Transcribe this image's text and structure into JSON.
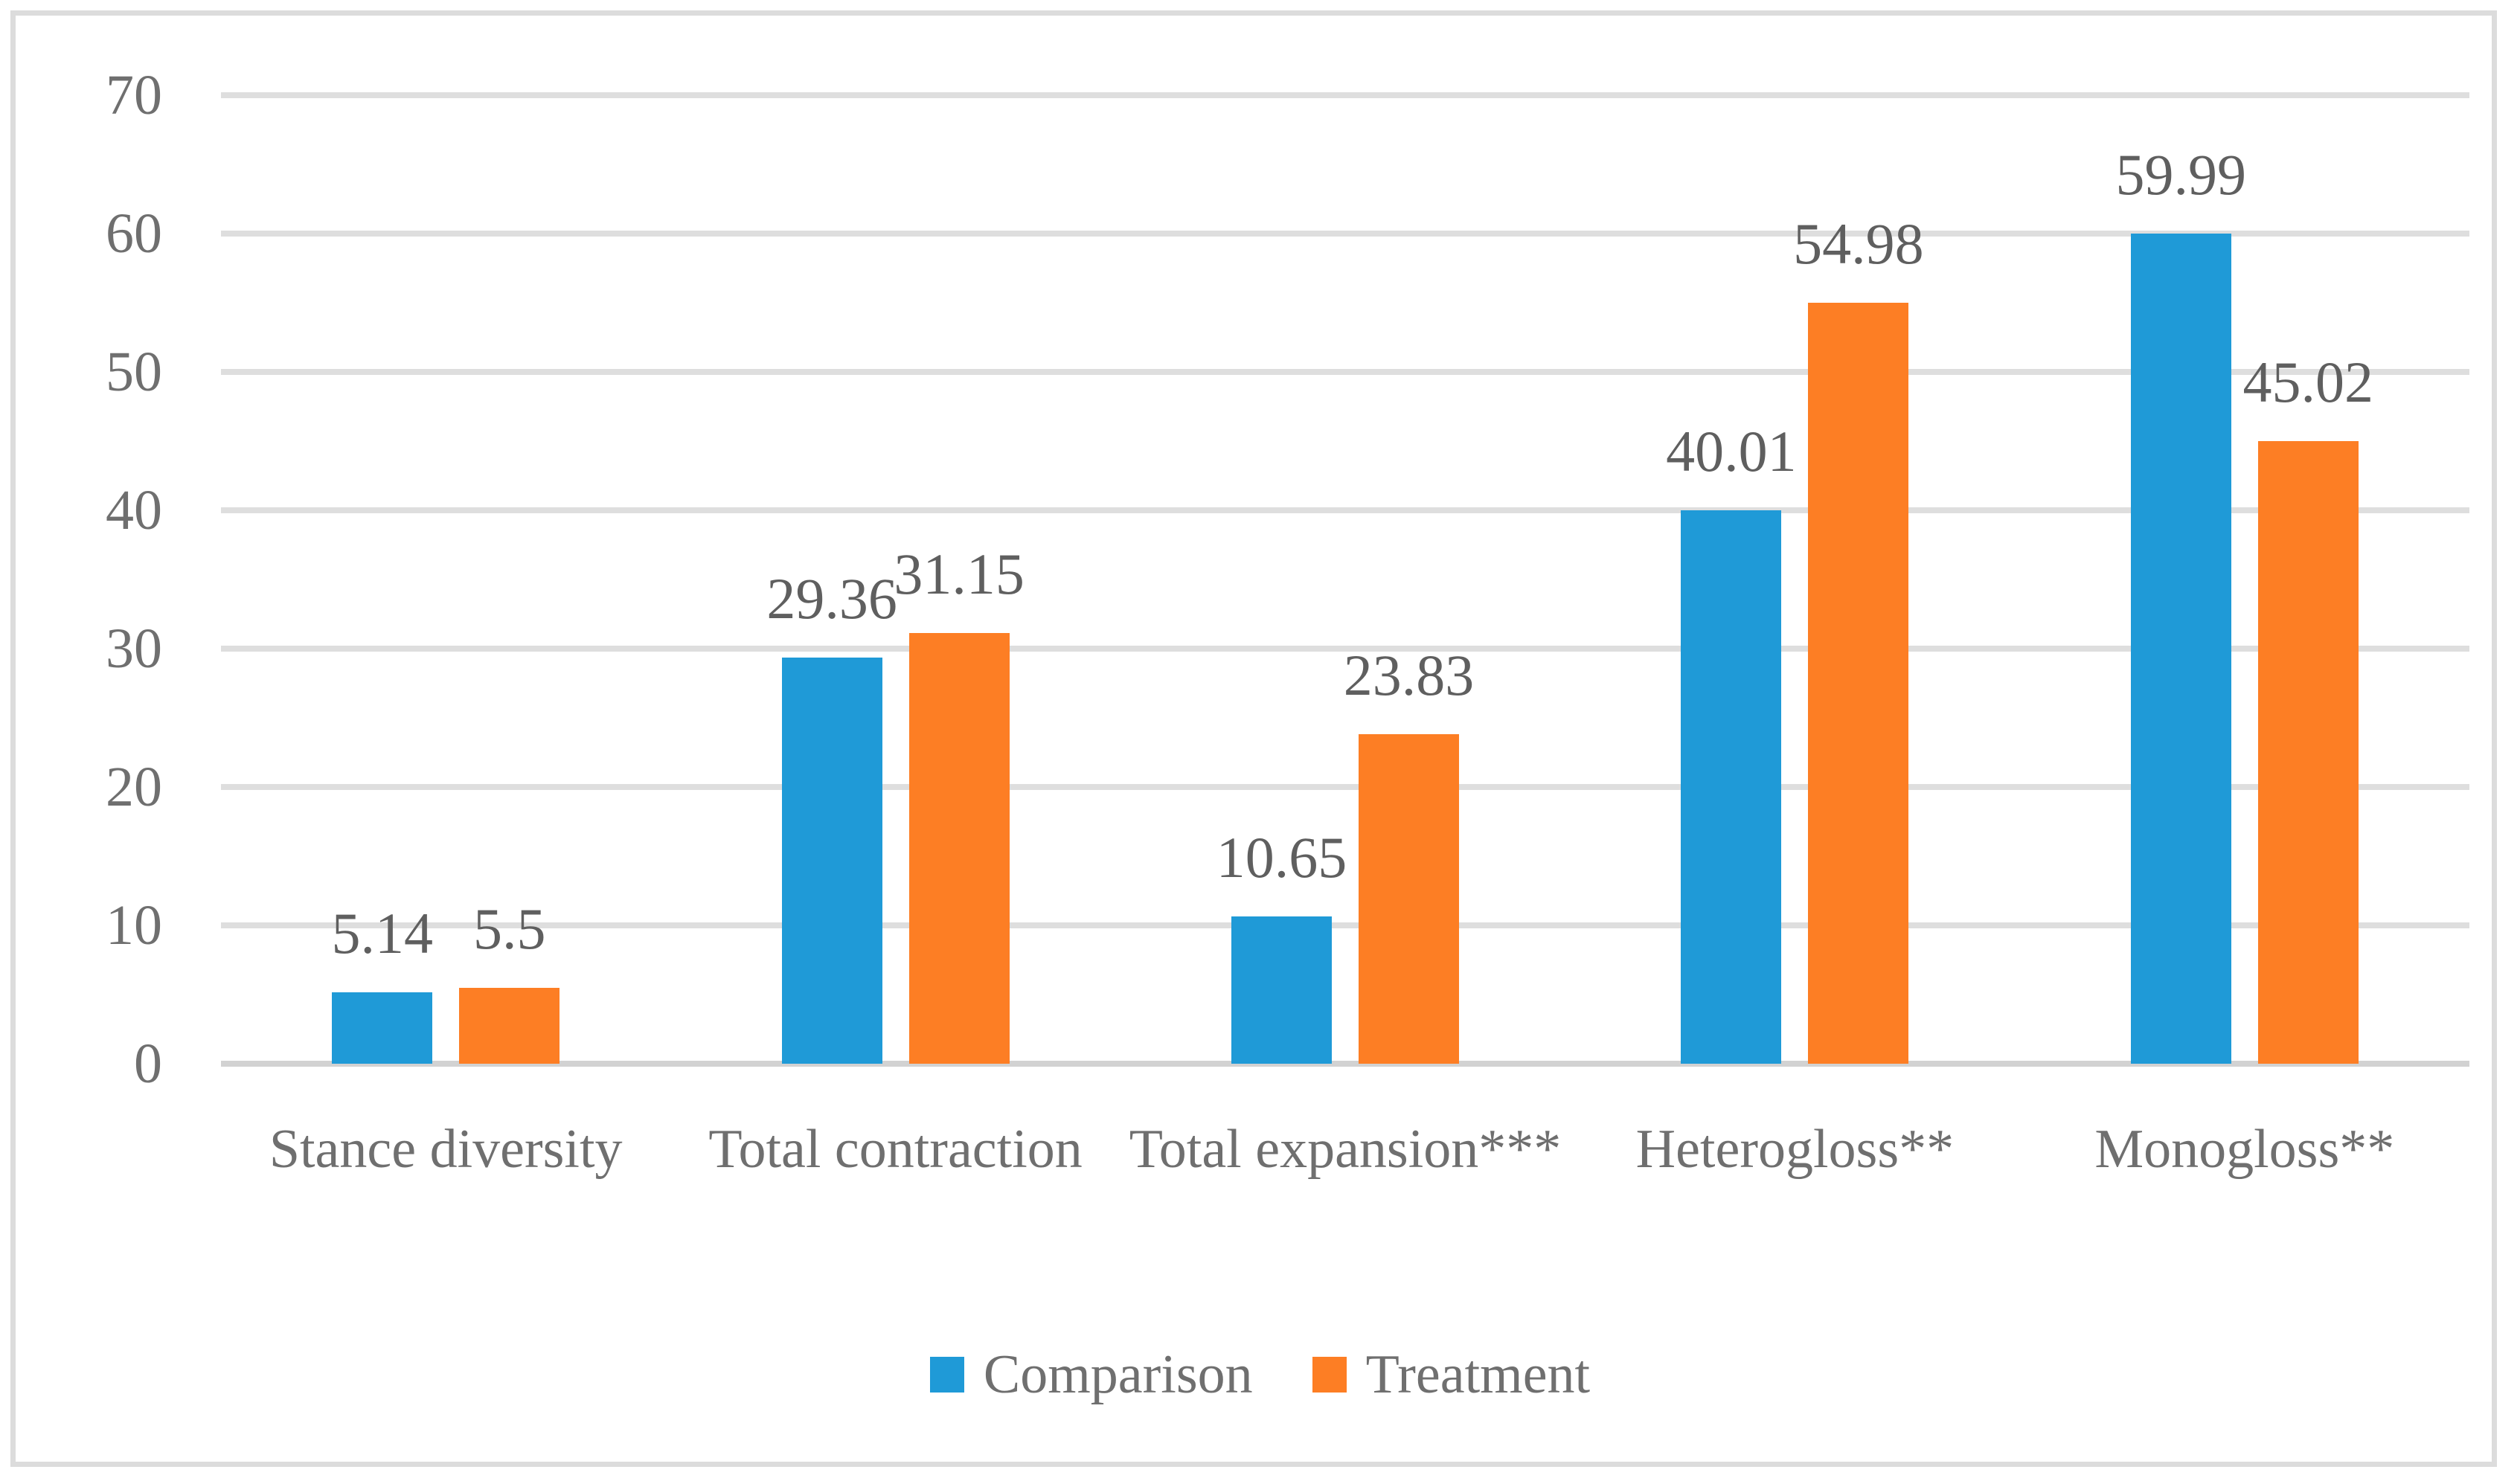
{
  "figure": {
    "background_color": "#ffffff",
    "border_color": "#dcdcdc"
  },
  "chart_data": {
    "type": "bar",
    "title": "",
    "xlabel": "",
    "ylabel": "",
    "categories": [
      "Stance diversity",
      "Total contraction",
      "Total expansion***",
      "Heterogloss**",
      "Monogloss**"
    ],
    "series": [
      {
        "name": "Comparison",
        "color": "#1f9ad7",
        "values": [
          5.14,
          29.36,
          10.65,
          40.01,
          59.99
        ]
      },
      {
        "name": "Treatment",
        "color": "#fd7e24",
        "values": [
          5.5,
          31.15,
          23.83,
          54.98,
          45.02
        ]
      }
    ],
    "data_labels": {
      "Comparison": [
        "5.14",
        "29.36",
        "10.65",
        "40.01",
        "59.99"
      ],
      "Treatment": [
        "5.5",
        "31.15",
        "23.83",
        "54.98",
        "45.02"
      ]
    },
    "ylim": [
      0,
      70
    ],
    "yticks": [
      "0",
      "10",
      "20",
      "30",
      "40",
      "50",
      "60",
      "70"
    ],
    "grid": true,
    "gridline_color": "#dedede",
    "axis_line_color": "#d2d2d2",
    "text_color": "#6f6f6f",
    "data_label_color": "#5f5f5f",
    "legend_position": "bottom-center"
  }
}
